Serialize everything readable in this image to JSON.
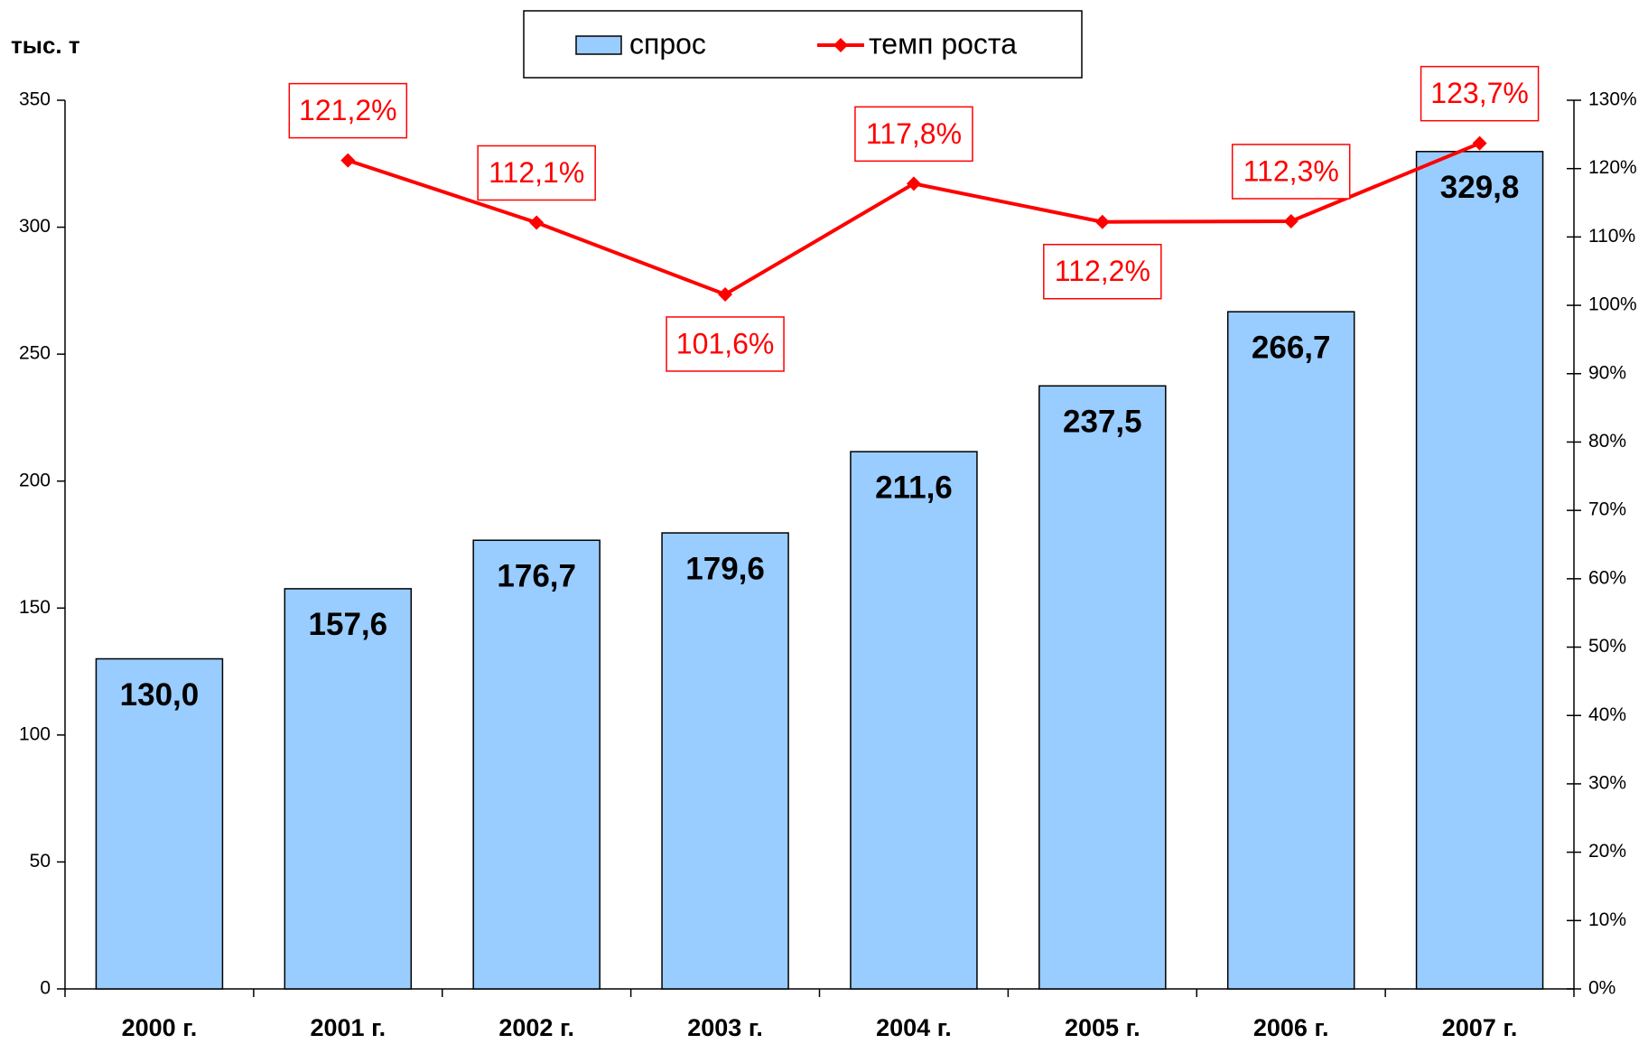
{
  "chart_data": {
    "type": "bar",
    "y_label": "тыс. т",
    "categories": [
      "2000 г.",
      "2001 г.",
      "2002 г.",
      "2003 г.",
      "2004 г.",
      "2005 г.",
      "2006 г.",
      "2007 г."
    ],
    "series": [
      {
        "name": "спрос",
        "type": "bar",
        "color": "#99ccff",
        "values": [
          130.0,
          157.6,
          176.7,
          179.6,
          211.6,
          237.5,
          266.7,
          329.8
        ],
        "value_labels": [
          "130,0",
          "157,6",
          "176,7",
          "179,6",
          "211,6",
          "237,5",
          "266,7",
          "329,8"
        ]
      },
      {
        "name": "темп роста",
        "type": "line",
        "axis": "y2",
        "color": "#ff0000",
        "values": [
          null,
          121.2,
          112.1,
          101.6,
          117.8,
          112.2,
          112.3,
          123.7
        ],
        "value_labels": [
          null,
          "121,2%",
          "112,1%",
          "101,6%",
          "117,8%",
          "112,2%",
          "112,3%",
          "123,7%"
        ]
      }
    ],
    "ylim": [
      0,
      350
    ],
    "yticks": [
      0,
      50,
      100,
      150,
      200,
      250,
      300,
      350
    ],
    "y2lim": [
      0,
      130
    ],
    "y2ticks": [
      {
        "value": 0,
        "label": "0%"
      },
      {
        "value": 10,
        "label": "10%"
      },
      {
        "value": 20,
        "label": "20%"
      },
      {
        "value": 30,
        "label": "30%"
      },
      {
        "value": 40,
        "label": "40%"
      },
      {
        "value": 50,
        "label": "50%"
      },
      {
        "value": 60,
        "label": "60%"
      },
      {
        "value": 70,
        "label": "70%"
      },
      {
        "value": 80,
        "label": "80%"
      },
      {
        "value": 90,
        "label": "90%"
      },
      {
        "value": 100,
        "label": "100%"
      },
      {
        "value": 110,
        "label": "110%"
      },
      {
        "value": 120,
        "label": "120%"
      },
      {
        "value": 130,
        "label": "130%"
      }
    ],
    "legend": "top",
    "grid": false
  }
}
